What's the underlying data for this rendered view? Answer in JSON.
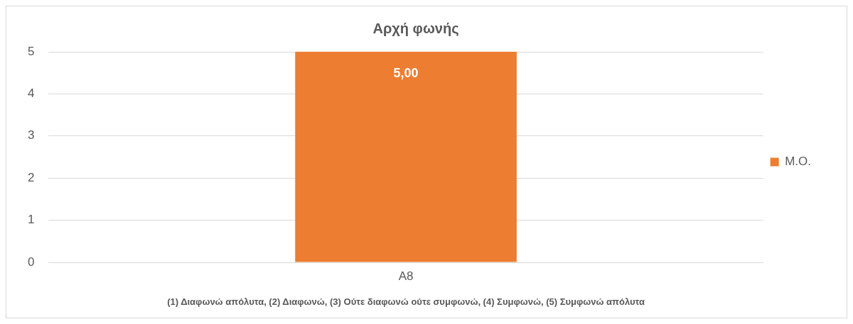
{
  "chart_data": {
    "type": "bar",
    "title": "Αρχή φωνής",
    "xlabel": "(1) Διαφωνώ απόλυτα, (2) Διαφωνώ, (3) Ούτε διαφωνώ ούτε συμφωνώ, (4) Συμφωνώ, (5) Συμφωνώ απόλυτα",
    "categories": [
      "A8"
    ],
    "series": [
      {
        "name": "Μ.Ο.",
        "color": "#ed7d31",
        "values": [
          5
        ],
        "value_labels": [
          "5,00"
        ]
      }
    ],
    "ylim": [
      0,
      5
    ],
    "yticks": [
      0,
      1,
      2,
      3,
      4,
      5
    ],
    "grid": "y",
    "legend": "right"
  }
}
